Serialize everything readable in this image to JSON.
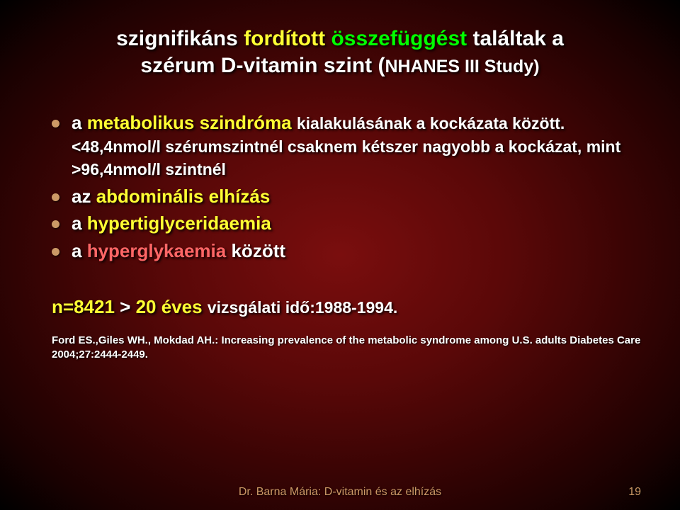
{
  "title": {
    "line1_prefix": "szignifikáns ",
    "line1_forditott": "fordított",
    "line1_space": " ",
    "line1_osszefuggest": "összefüggést",
    "line1_suffix": " találtak a",
    "line2_prefix": "szérum D-vitamin szint (",
    "line2_study": "NHANES III Study)"
  },
  "bullets": {
    "b1_prefix": "a ",
    "b1_ms": "metabolikus szindróma ",
    "b1_tail": "kialakulásának a kockázata között. ",
    "b1_sub": "<48,4nmol/l szérumszintnél csaknem kétszer nagyobb a kockázat, mint >96,4nmol/l szintnél",
    "b2_prefix": "az ",
    "b2_main": "abdominális elhízás",
    "b3_prefix": "a ",
    "b3_main": "hypertiglyceridaemia",
    "b4_prefix": "a ",
    "b4_main": "hyperglykaemia",
    "b4_tail": " között"
  },
  "nline": {
    "n": "n=8421 ",
    "gt": "> ",
    "age": "20 éves ",
    "period": "vizsgálati idő:1988-1994."
  },
  "reference": "Ford ES.,Giles WH., Mokdad AH.: Increasing prevalence of the metabolic syndrome among U.S. adults Diabetes Care 2004;27:2444-2449.",
  "footer": "Dr. Barna Mária: D-vitamin és az elhízás",
  "page": "19"
}
